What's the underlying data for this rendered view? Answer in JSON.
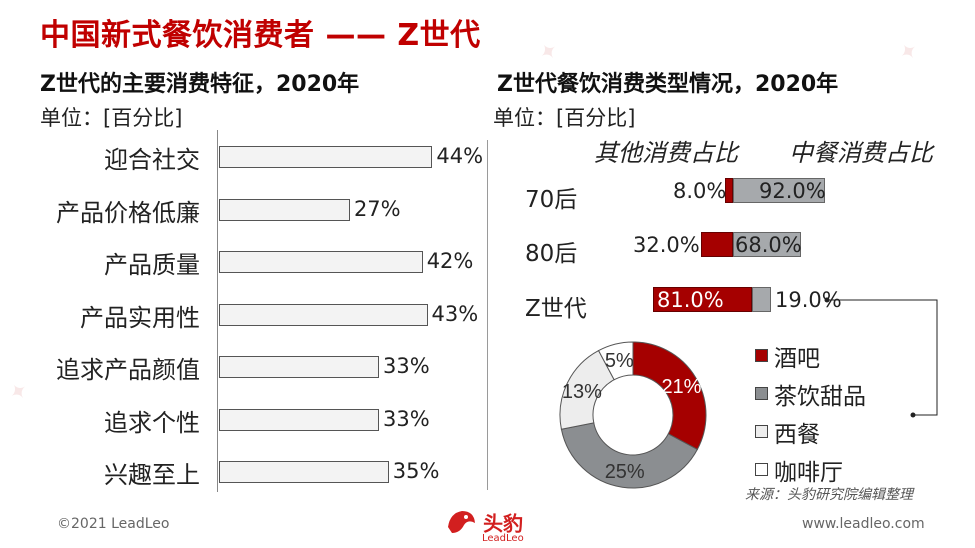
{
  "page": {
    "title": "中国新式餐饮消费者 —— Z世代",
    "footer_left": "©2021 LeadLeo",
    "footer_right": "www.leadleo.com",
    "source": "来源：头豹研究院编辑整理",
    "logo_text": "头豹",
    "logo_sub": "LeadLeo"
  },
  "left_panel": {
    "subtitle": "Z世代的主要消费特征，2020年",
    "unit": "单位：[百分比]"
  },
  "right_panel": {
    "subtitle": "Z世代餐饮消费类型情况，2020年",
    "unit": "单位：[百分比]",
    "header_other": "其他消费占比",
    "header_chinese": "中餐消费占比"
  },
  "chart_data": [
    {
      "type": "bar",
      "orientation": "horizontal",
      "title": "Z世代的主要消费特征，2020年",
      "unit": "单位：[百分比]",
      "categories": [
        "迎合社交",
        "产品价格低廉",
        "产品质量",
        "产品实用性",
        "追求产品颜值",
        "追求个性",
        "兴趣至上"
      ],
      "values": [
        44,
        27,
        42,
        43,
        33,
        33,
        35
      ],
      "labels": [
        "44%",
        "27%",
        "42%",
        "43%",
        "33%",
        "33%",
        "35%"
      ],
      "xlim": [
        0,
        100
      ]
    },
    {
      "type": "bar",
      "orientation": "horizontal",
      "stacked": true,
      "title": "Z世代餐饮消费类型情况，2020年",
      "categories": [
        "70后",
        "80后",
        "Z世代"
      ],
      "series": [
        {
          "name": "其他消费占比",
          "values": [
            8.0,
            32.0,
            81.0
          ],
          "labels": [
            "8.0%",
            "32.0%",
            "81.0%"
          ],
          "color": "#a50000"
        },
        {
          "name": "中餐消费占比",
          "values": [
            92.0,
            68.0,
            19.0
          ],
          "labels": [
            "92.0%",
            "68.0%",
            "19.0%"
          ],
          "color": "#a6a9ac"
        }
      ]
    },
    {
      "type": "pie",
      "donut": true,
      "categories": [
        "酒吧",
        "茶饮甜品",
        "西餐",
        "咖啡厅"
      ],
      "values": [
        21,
        25,
        13,
        5
      ],
      "labels": [
        "21%",
        "25%",
        "13%",
        "5%"
      ],
      "colors": [
        "#a50000",
        "#8b8e91",
        "#ededed",
        "#ffffff"
      ],
      "legend": "right"
    }
  ]
}
